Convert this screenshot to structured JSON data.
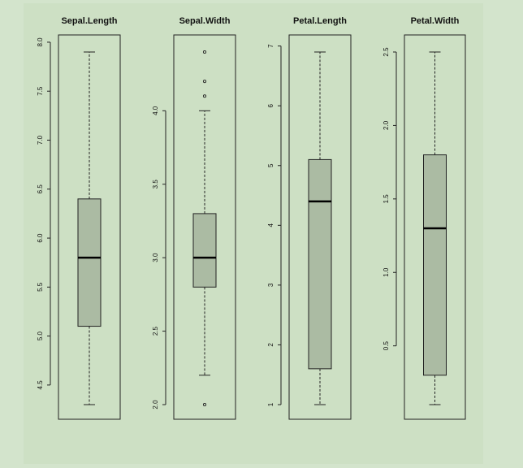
{
  "colors": {
    "page_background": "#d3e4cc",
    "figure_background": "#cde0c4",
    "box_fill": "#abbba3",
    "outline": "#222222",
    "median": "#000000"
  },
  "chart_data": [
    {
      "type": "box",
      "title": "Sepal.Length",
      "ylim": [
        4.3,
        7.9
      ],
      "ticks": [
        4.5,
        5.0,
        5.5,
        6.0,
        6.5,
        7.0,
        7.5,
        8.0
      ],
      "tick_labels": [
        "4.5",
        "5.0",
        "5.5",
        "6.0",
        "6.5",
        "7.0",
        "7.5",
        "8.0"
      ],
      "whisker_low": 4.3,
      "q1": 5.1,
      "median": 5.8,
      "q3": 6.4,
      "whisker_high": 7.9,
      "outliers": []
    },
    {
      "type": "box",
      "title": "Sepal.Width",
      "ylim": [
        2.0,
        4.4
      ],
      "ticks": [
        2.0,
        2.5,
        3.0,
        3.5,
        4.0
      ],
      "tick_labels": [
        "2.0",
        "2.5",
        "3.0",
        "3.5",
        "4.0"
      ],
      "whisker_low": 2.2,
      "q1": 2.8,
      "median": 3.0,
      "q3": 3.3,
      "whisker_high": 4.0,
      "outliers": [
        2.0,
        4.1,
        4.2,
        4.4
      ]
    },
    {
      "type": "box",
      "title": "Petal.Length",
      "ylim": [
        1.0,
        6.9
      ],
      "ticks": [
        1,
        2,
        3,
        4,
        5,
        6,
        7
      ],
      "tick_labels": [
        "1",
        "2",
        "3",
        "4",
        "5",
        "6",
        "7"
      ],
      "whisker_low": 1.0,
      "q1": 1.6,
      "median": 4.4,
      "q3": 5.1,
      "whisker_high": 6.9,
      "outliers": []
    },
    {
      "type": "box",
      "title": "Petal.Width",
      "ylim": [
        0.1,
        2.5
      ],
      "ticks": [
        0.5,
        1.0,
        1.5,
        2.0,
        2.5
      ],
      "tick_labels": [
        "0.5",
        "1.0",
        "1.5",
        "2.0",
        "2.5"
      ],
      "whisker_low": 0.1,
      "q1": 0.3,
      "median": 1.3,
      "q3": 1.8,
      "whisker_high": 2.5,
      "outliers": []
    }
  ]
}
